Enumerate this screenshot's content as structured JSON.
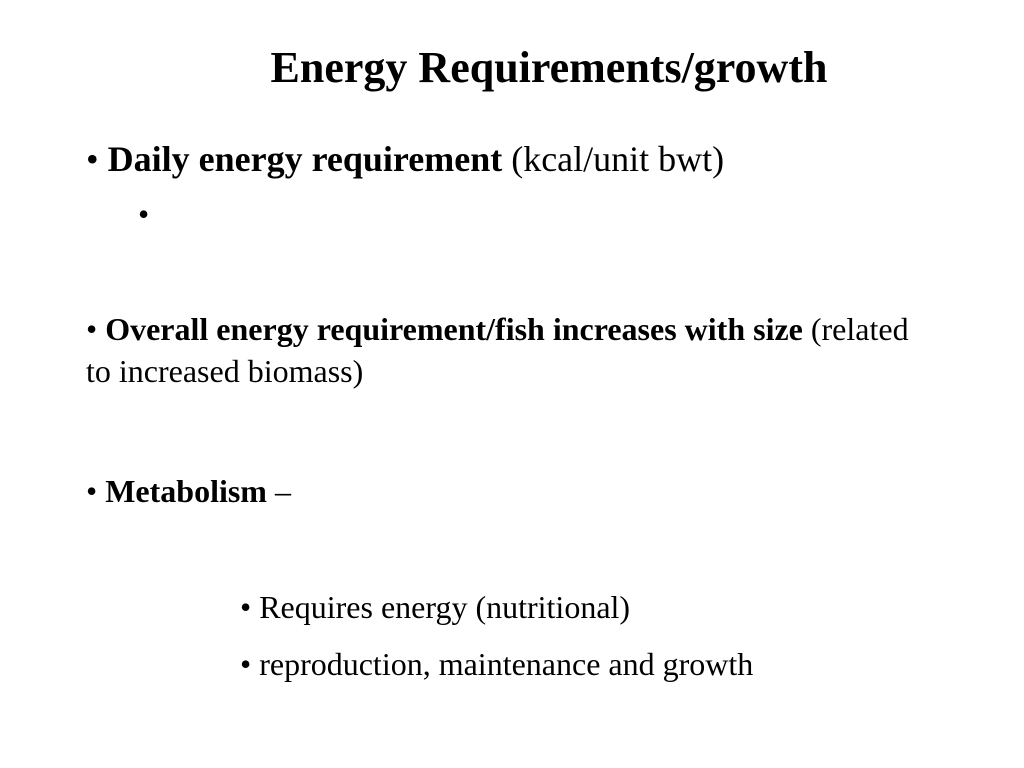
{
  "slide": {
    "title": "Energy Requirements/growth",
    "bullet_char": "•",
    "bullets": [
      {
        "bold": "Daily energy requirement",
        "rest": " (kcal/unit bwt)"
      },
      {
        "bold": "",
        "rest": ""
      },
      {
        "bold": "Overall energy requirement/fish increases with size",
        "rest": " (related to increased biomass)"
      },
      {
        "bold": "Metabolism",
        "rest": " –"
      },
      {
        "bold": "",
        "rest": "Requires energy (nutritional)"
      },
      {
        "bold": "",
        "rest": "reproduction, maintenance and growth"
      }
    ]
  }
}
